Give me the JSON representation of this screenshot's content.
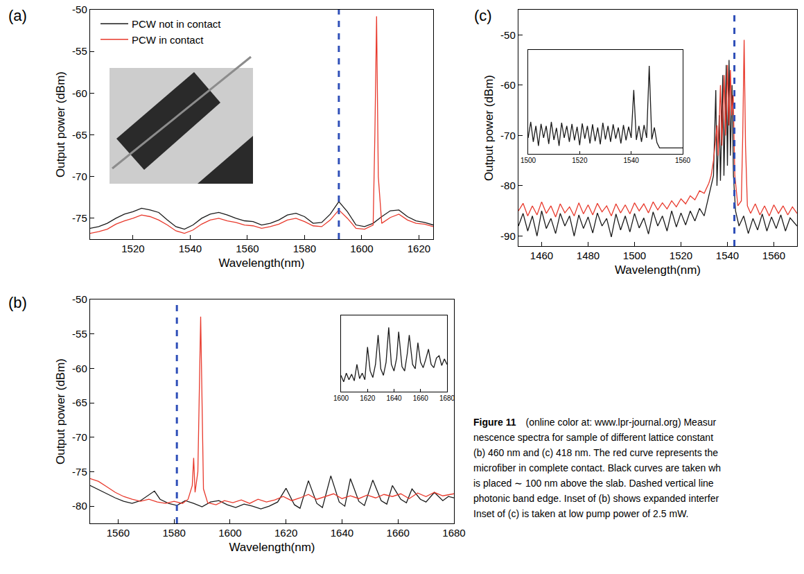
{
  "chart_data": [
    {
      "type": "line",
      "title": "(a)",
      "xlabel": "Wavelength(nm)",
      "ylabel": "Output power (dBm)",
      "xlim": [
        1505,
        1625
      ],
      "xticks": [
        1520,
        1540,
        1560,
        1580,
        1600,
        1620
      ],
      "ylim": [
        -77.5,
        -50
      ],
      "yticks": [
        -75,
        -70,
        -65,
        -60,
        -55,
        -50
      ],
      "grid": false,
      "legend": "upper left",
      "band_edge": {
        "x": 1592,
        "color": "#2f4fb8",
        "line_style": "dash"
      },
      "series": [
        {
          "name": "PCW not in contact",
          "color": "#1a1a1a",
          "x": [
            1505,
            1508,
            1511,
            1514,
            1517,
            1520,
            1523,
            1526,
            1529,
            1532,
            1535,
            1538,
            1541,
            1544,
            1547,
            1550,
            1553,
            1556,
            1559,
            1562,
            1565,
            1568,
            1571,
            1574,
            1577,
            1580,
            1583,
            1586,
            1589,
            1592,
            1595,
            1598,
            1601,
            1604,
            1607,
            1610,
            1613,
            1616,
            1619,
            1622,
            1625
          ],
          "values": [
            -76.2,
            -76.0,
            -75.6,
            -75.0,
            -74.5,
            -74.2,
            -73.8,
            -74.0,
            -74.3,
            -75.2,
            -76.0,
            -76.3,
            -75.8,
            -75.0,
            -74.5,
            -74.3,
            -74.6,
            -75.0,
            -75.3,
            -75.4,
            -75.8,
            -75.6,
            -75.2,
            -74.6,
            -74.4,
            -74.8,
            -75.6,
            -75.5,
            -74.5,
            -73.0,
            -74.2,
            -75.8,
            -76.0,
            -75.6,
            -74.8,
            -74.1,
            -74.0,
            -74.8,
            -75.3,
            -75.5,
            -75.8
          ]
        },
        {
          "name": "PCW in contact",
          "color": "#e8392c",
          "x": [
            1505,
            1508,
            1511,
            1514,
            1517,
            1520,
            1523,
            1526,
            1529,
            1532,
            1535,
            1538,
            1541,
            1544,
            1547,
            1550,
            1553,
            1556,
            1559,
            1562,
            1565,
            1568,
            1571,
            1574,
            1577,
            1580,
            1583,
            1586,
            1589,
            1592,
            1595,
            1598,
            1601,
            1604,
            1604.6,
            1605.2,
            1605.8,
            1607,
            1610,
            1613,
            1616,
            1619,
            1622,
            1625
          ],
          "values": [
            -76.8,
            -76.6,
            -76.3,
            -75.7,
            -75.3,
            -75.0,
            -74.6,
            -74.8,
            -75.2,
            -75.8,
            -76.5,
            -76.8,
            -76.4,
            -75.7,
            -75.2,
            -75.0,
            -75.3,
            -75.5,
            -75.8,
            -75.9,
            -76.2,
            -76.0,
            -75.7,
            -75.2,
            -75.0,
            -75.4,
            -75.9,
            -76.0,
            -75.2,
            -74.0,
            -75.0,
            -76.2,
            -76.3,
            -75.8,
            -65,
            -50.8,
            -70,
            -75.6,
            -74.9,
            -74.5,
            -75.2,
            -75.6,
            -75.7,
            -76.0
          ]
        }
      ]
    },
    {
      "type": "line",
      "title": "(b)",
      "xlabel": "Wavelength(nm)",
      "ylabel": "Output power (dBm)",
      "xlim": [
        1550,
        1680
      ],
      "xticks": [
        1560,
        1580,
        1600,
        1620,
        1640,
        1660,
        1680
      ],
      "ylim": [
        -82.5,
        -50
      ],
      "yticks": [
        -80,
        -75,
        -70,
        -65,
        -60,
        -55,
        -50
      ],
      "grid": false,
      "band_edge": {
        "x": 1581,
        "color": "#2f4fb8",
        "line_style": "dash"
      },
      "series": [
        {
          "color": "#1a1a1a",
          "x": [
            1550,
            1553,
            1556,
            1559,
            1562,
            1565,
            1568,
            1571,
            1573,
            1575,
            1578,
            1581,
            1584,
            1587,
            1590,
            1593,
            1596,
            1599,
            1602,
            1605,
            1608,
            1611,
            1614,
            1617,
            1620,
            1623,
            1625,
            1628,
            1631,
            1633,
            1636,
            1639,
            1641,
            1643,
            1646,
            1648,
            1651,
            1654,
            1656,
            1658,
            1661,
            1663,
            1665,
            1668,
            1670,
            1673,
            1676,
            1678,
            1680
          ],
          "values": [
            -77.0,
            -77.6,
            -78.2,
            -78.8,
            -79.3,
            -79.6,
            -79.2,
            -78.4,
            -77.8,
            -79.0,
            -79.6,
            -79.9,
            -79.2,
            -79.6,
            -80.1,
            -79.4,
            -79.2,
            -79.8,
            -80.2,
            -79.7,
            -80.0,
            -80.4,
            -80.0,
            -79.4,
            -77.4,
            -79.8,
            -80.3,
            -76.3,
            -79.6,
            -80.2,
            -75.6,
            -79.4,
            -80.0,
            -76.0,
            -79.3,
            -79.9,
            -76.2,
            -79.2,
            -79.7,
            -77.0,
            -79.0,
            -79.5,
            -77.5,
            -79.0,
            -79.4,
            -78.0,
            -79.2,
            -78.6,
            -78.8
          ]
        },
        {
          "color": "#e8392c",
          "x": [
            1550,
            1553,
            1556,
            1559,
            1562,
            1565,
            1568,
            1571,
            1574,
            1577,
            1580,
            1583,
            1585,
            1586.5,
            1587,
            1587.5,
            1588.5,
            1589.5,
            1590.5,
            1592,
            1595,
            1598,
            1601,
            1604,
            1607,
            1610,
            1613,
            1616,
            1619,
            1622,
            1625,
            1628,
            1631,
            1634,
            1637,
            1640,
            1643,
            1646,
            1649,
            1652,
            1655,
            1658,
            1661,
            1664,
            1667,
            1670,
            1673,
            1676,
            1680
          ],
          "values": [
            -76.0,
            -76.4,
            -77.2,
            -78.0,
            -78.6,
            -79.0,
            -79.3,
            -79.0,
            -79.4,
            -79.6,
            -79.3,
            -79.6,
            -79.0,
            -77.0,
            -73.0,
            -78.0,
            -75.0,
            -52.5,
            -77.5,
            -79.5,
            -79.8,
            -79.2,
            -79.5,
            -79.1,
            -79.6,
            -79.0,
            -79.4,
            -79.1,
            -78.6,
            -79.2,
            -78.8,
            -78.3,
            -79.0,
            -78.6,
            -78.2,
            -78.9,
            -78.5,
            -78.9,
            -78.4,
            -78.8,
            -78.3,
            -78.6,
            -78.2,
            -78.9,
            -78.1,
            -78.6,
            -78.0,
            -78.5,
            -78.2
          ]
        }
      ]
    },
    {
      "type": "line",
      "tick_labels": "x",
      "xlim": [
        1600,
        1680
      ],
      "xticks": [
        1600,
        1620,
        1640,
        1660,
        1680
      ],
      "ylim": [
        -81.5,
        -74.5
      ],
      "grid": false,
      "series": [
        {
          "color": "#1a1a1a",
          "x": [
            1600,
            1602,
            1604,
            1606,
            1608,
            1610,
            1612,
            1614,
            1616,
            1618,
            1620,
            1622,
            1624,
            1626,
            1628,
            1630,
            1632,
            1634,
            1636,
            1638,
            1640,
            1642,
            1643.5,
            1646,
            1648,
            1650,
            1651.5,
            1654,
            1656,
            1658,
            1660,
            1662,
            1664,
            1666,
            1668,
            1670,
            1672,
            1674,
            1676,
            1678,
            1680
          ],
          "values": [
            -80.0,
            -80.6,
            -79.8,
            -80.4,
            -79.9,
            -80.5,
            -79.0,
            -80.3,
            -79.8,
            -80.4,
            -77.4,
            -79.6,
            -80.2,
            -79.0,
            -76.3,
            -79.4,
            -80.0,
            -78.8,
            -75.6,
            -79.0,
            -79.6,
            -78.4,
            -76.0,
            -79.2,
            -79.6,
            -78.0,
            -76.3,
            -79.0,
            -79.4,
            -77.0,
            -78.8,
            -79.3,
            -78.5,
            -77.6,
            -79.0,
            -79.3,
            -78.4,
            -78.2,
            -79.1,
            -78.5,
            -79.0
          ]
        }
      ]
    },
    {
      "type": "line",
      "title": "(c)",
      "xlabel": "Wavelength(nm)",
      "ylabel": "Output power (dBm)",
      "xlim": [
        1450,
        1570
      ],
      "xticks": [
        1460,
        1480,
        1500,
        1520,
        1540,
        1560
      ],
      "ylim": [
        -92,
        -45
      ],
      "yticks": [
        -90,
        -80,
        -70,
        -60,
        -50
      ],
      "grid": false,
      "band_edge": {
        "x": 1543,
        "color": "#2f4fb8",
        "line_style": "dash"
      },
      "series": [
        {
          "color": "#1a1a1a",
          "x": [
            1450,
            1452,
            1454,
            1456,
            1458,
            1460,
            1462,
            1464,
            1466,
            1468,
            1470,
            1472,
            1474,
            1476,
            1478,
            1480,
            1482,
            1484,
            1486,
            1488,
            1490,
            1492,
            1494,
            1496,
            1498,
            1500,
            1502,
            1504,
            1506,
            1508,
            1510,
            1512,
            1514,
            1516,
            1518,
            1520,
            1522,
            1524,
            1526,
            1528,
            1530,
            1532,
            1533,
            1534,
            1535,
            1535.5,
            1536.5,
            1537,
            1538,
            1538.5,
            1539.5,
            1540,
            1540.7,
            1541.3,
            1542,
            1542.6,
            1543.5,
            1545,
            1547,
            1549,
            1551,
            1553,
            1555,
            1557,
            1559,
            1561,
            1563,
            1565,
            1567,
            1570
          ],
          "values": [
            -88,
            -85.5,
            -89,
            -86,
            -90,
            -85,
            -88.5,
            -86.5,
            -89.5,
            -85.5,
            -88,
            -86,
            -90,
            -85.8,
            -88.5,
            -86.2,
            -89.4,
            -85.4,
            -88,
            -86.5,
            -90.2,
            -85.6,
            -88.8,
            -86,
            -89.2,
            -85.5,
            -88.4,
            -86.4,
            -89.6,
            -85.2,
            -88,
            -86,
            -89,
            -85,
            -88.2,
            -85.4,
            -87.8,
            -85,
            -87,
            -84.5,
            -86,
            -82,
            -80,
            -78,
            -61,
            -80,
            -66,
            -79,
            -58,
            -78,
            -56,
            -76,
            -55,
            -74,
            -60,
            -78,
            -85,
            -88,
            -86,
            -89.5,
            -86.5,
            -88.8,
            -85.6,
            -89,
            -86.2,
            -88.5,
            -85.8,
            -89,
            -86.4,
            -88
          ]
        },
        {
          "color": "#e8392c",
          "x": [
            1450,
            1452,
            1454,
            1456,
            1458,
            1460,
            1462,
            1464,
            1466,
            1468,
            1470,
            1472,
            1474,
            1476,
            1478,
            1480,
            1482,
            1484,
            1486,
            1488,
            1490,
            1492,
            1494,
            1496,
            1498,
            1500,
            1502,
            1504,
            1506,
            1508,
            1510,
            1512,
            1514,
            1516,
            1518,
            1520,
            1522,
            1524,
            1526,
            1528,
            1530,
            1532,
            1533,
            1534,
            1535.5,
            1536,
            1537,
            1537.6,
            1538.6,
            1539.2,
            1540,
            1540.6,
            1541.3,
            1541.8,
            1542.5,
            1543.2,
            1544.5,
            1546,
            1546.6,
            1547.2,
            1547.8,
            1548.6,
            1550,
            1552,
            1554,
            1556,
            1558,
            1560,
            1562,
            1564,
            1566,
            1568,
            1570
          ],
          "values": [
            -85,
            -83.5,
            -86,
            -84,
            -85.8,
            -83.2,
            -85.5,
            -84,
            -86.2,
            -83.6,
            -85.4,
            -84.2,
            -86,
            -83.4,
            -85.6,
            -83.8,
            -85.8,
            -83.5,
            -85.2,
            -84,
            -86,
            -83.6,
            -85.4,
            -83.8,
            -85.6,
            -83.4,
            -85,
            -83.6,
            -85.4,
            -83.2,
            -84.8,
            -83.4,
            -84.6,
            -83,
            -84.2,
            -82.6,
            -83.6,
            -82,
            -82.8,
            -81,
            -81.5,
            -79.5,
            -78,
            -75,
            -68,
            -74,
            -60,
            -72,
            -58,
            -70,
            -56,
            -68,
            -57,
            -66,
            -62,
            -78,
            -84,
            -83,
            -70,
            -51,
            -72,
            -84,
            -85.5,
            -83.6,
            -85.8,
            -84,
            -86,
            -83.8,
            -85.5,
            -84,
            -85.8,
            -84.2,
            -85.5
          ]
        }
      ]
    },
    {
      "type": "line",
      "tick_labels": "x",
      "xlim": [
        1500,
        1560
      ],
      "xticks": [
        1500,
        1520,
        1540,
        1560
      ],
      "ylim": [
        -92,
        -66
      ],
      "grid": false,
      "series": [
        {
          "color": "#1a1a1a",
          "x": [
            1500,
            1501,
            1502,
            1503,
            1504,
            1505,
            1506,
            1507,
            1508,
            1509,
            1510,
            1511,
            1512,
            1513,
            1514,
            1515,
            1516,
            1517,
            1518,
            1519,
            1520,
            1521,
            1522,
            1523,
            1524,
            1525,
            1526,
            1527,
            1528,
            1529,
            1530,
            1531,
            1532,
            1533,
            1534,
            1535,
            1536,
            1537,
            1538,
            1539,
            1540,
            1541,
            1542,
            1543,
            1544,
            1545,
            1546,
            1547,
            1548,
            1549,
            1550,
            1551,
            1556,
            1560
          ],
          "values": [
            -88,
            -84,
            -89,
            -85,
            -90,
            -84.5,
            -88,
            -85,
            -89.5,
            -84,
            -88.5,
            -85.5,
            -90,
            -84.2,
            -88,
            -85,
            -89,
            -84.5,
            -88.6,
            -85.2,
            -89.8,
            -84.4,
            -88.2,
            -85,
            -89.4,
            -84.6,
            -88.8,
            -85.4,
            -89.6,
            -84.2,
            -88.4,
            -85,
            -89,
            -84.6,
            -88.2,
            -85.4,
            -89.4,
            -84.8,
            -88.6,
            -85.2,
            -88,
            -76,
            -88.5,
            -85,
            -89,
            -84.8,
            -88,
            -70,
            -88.4,
            -85.4,
            -89.2,
            -90.5,
            -90.5,
            -90.5
          ]
        }
      ]
    }
  ],
  "caption": {
    "label": "Figure 11",
    "lines": [
      "(online color at: www.lpr-journal.org)  Measur",
      "nescence spectra for sample of different lattice constant",
      "(b) 460 nm and (c) 418 nm. The red curve represents the",
      "microfiber in complete contact. Black curves are taken wh",
      "is placed ∼ 100 nm above the slab. Dashed vertical line",
      "photonic band edge. Inset of (b) shows expanded interfer",
      "Inset of (c) is taken at low pump power of 2.5 mW."
    ]
  }
}
